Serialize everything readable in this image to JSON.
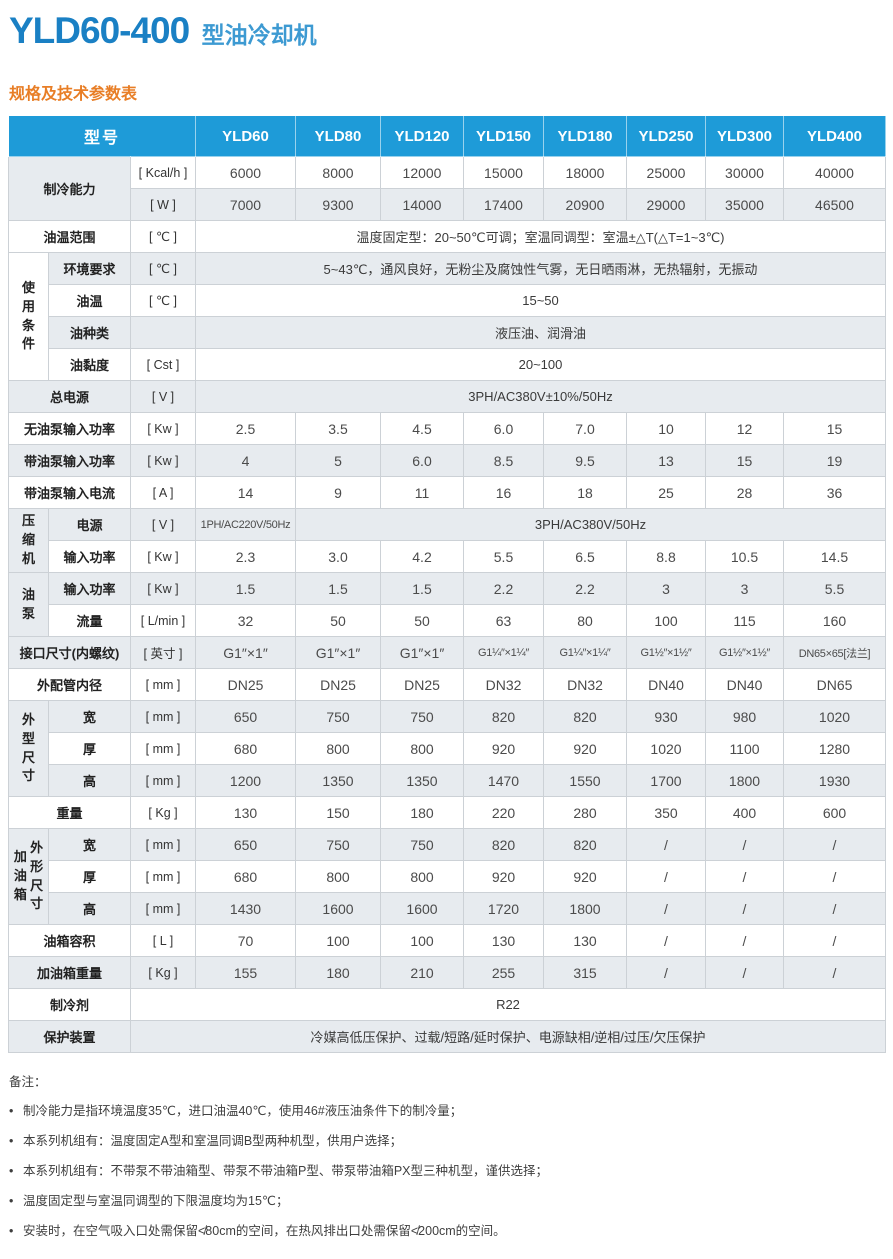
{
  "page": {
    "title_model": "YLD60-400",
    "title_type": "型油冷却机",
    "section_title": "规格及技术参数表"
  },
  "colors": {
    "header_bg": "#1e9bd8",
    "title_blue": "#1a80c4",
    "title_blue_light": "#3d9ad2",
    "accent_orange": "#e87e26",
    "row_shade": "#e7ebef"
  },
  "table": {
    "header": [
      "型号",
      "YLD60",
      "YLD80",
      "YLD120",
      "YLD150",
      "YLD180",
      "YLD250",
      "YLD300",
      "YLD400"
    ],
    "rows": [
      [
        {
          "t": "制冷能力",
          "c": 2,
          "r": 2,
          "k": "l",
          "s": 1
        },
        {
          "t": "[ Kcal/h ]",
          "k": "u"
        },
        "6000",
        "8000",
        "12000",
        "15000",
        "18000",
        "25000",
        "30000",
        "40000"
      ],
      [
        {
          "t": "[ W ]",
          "k": "u"
        },
        "7000",
        "9300",
        "14000",
        "17400",
        "20900",
        "29000",
        "35000",
        "46500"
      ],
      [
        {
          "t": "油温范围",
          "c": 2,
          "k": "l"
        },
        {
          "t": "[ ℃ ]",
          "k": "u"
        },
        {
          "t": "温度固定型：20~50℃可调；室温同调型：室温±△T(△T=1~3℃)",
          "c": 8,
          "k": "v"
        }
      ],
      [
        {
          "t": "使用条件",
          "r": 4,
          "k": "g",
          "s": 0
        },
        {
          "t": "环境要求",
          "k": "s"
        },
        {
          "t": "[ ℃ ]",
          "k": "u"
        },
        {
          "t": "5~43℃，通风良好，无粉尘及腐蚀性气雾，无日晒雨淋，无热辐射，无振动",
          "c": 8,
          "k": "v"
        }
      ],
      [
        {
          "t": "油温",
          "k": "s"
        },
        {
          "t": "[ ℃ ]",
          "k": "u"
        },
        {
          "t": "15~50",
          "c": 8,
          "k": "v"
        }
      ],
      [
        {
          "t": "油种类",
          "k": "s"
        },
        {
          "t": "",
          "k": "u"
        },
        {
          "t": "液压油、润滑油",
          "c": 8,
          "k": "v"
        }
      ],
      [
        {
          "t": "油黏度",
          "k": "s"
        },
        {
          "t": "[ Cst ]",
          "k": "u"
        },
        {
          "t": "20~100",
          "c": 8,
          "k": "v"
        }
      ],
      [
        {
          "t": "总电源",
          "c": 2,
          "k": "l"
        },
        {
          "t": "[ V ]",
          "k": "u"
        },
        {
          "t": "3PH/AC380V±10%/50Hz",
          "c": 8,
          "k": "v"
        }
      ],
      [
        {
          "t": "无油泵输入功率",
          "c": 2,
          "k": "l"
        },
        {
          "t": "[ Kw ]",
          "k": "u"
        },
        "2.5",
        "3.5",
        "4.5",
        "6.0",
        "7.0",
        "10",
        "12",
        "15"
      ],
      [
        {
          "t": "带油泵输入功率",
          "c": 2,
          "k": "l"
        },
        {
          "t": "[ Kw ]",
          "k": "u"
        },
        "4",
        "5",
        "6.0",
        "8.5",
        "9.5",
        "13",
        "15",
        "19"
      ],
      [
        {
          "t": "带油泵输入电流",
          "c": 2,
          "k": "l"
        },
        {
          "t": "[ A ]",
          "k": "u"
        },
        "14",
        "9",
        "11",
        "16",
        "18",
        "25",
        "28",
        "36"
      ],
      [
        {
          "t": "压缩机",
          "r": 2,
          "k": "g",
          "s": 1
        },
        {
          "t": "电源",
          "k": "s"
        },
        {
          "t": "[ V ]",
          "k": "u"
        },
        {
          "t": "1PH/AC220V/50Hz",
          "k": "v"
        },
        {
          "t": "3PH/AC380V/50Hz",
          "c": 7,
          "k": "v"
        }
      ],
      [
        {
          "t": "输入功率",
          "k": "s"
        },
        {
          "t": "[ Kw ]",
          "k": "u"
        },
        "2.3",
        "3.0",
        "4.2",
        "5.5",
        "6.5",
        "8.8",
        "10.5",
        "14.5"
      ],
      [
        {
          "t": "油泵",
          "r": 2,
          "k": "g",
          "s": 1
        },
        {
          "t": "输入功率",
          "k": "s"
        },
        {
          "t": "[ Kw ]",
          "k": "u"
        },
        "1.5",
        "1.5",
        "1.5",
        "2.2",
        "2.2",
        "3",
        "3",
        "5.5"
      ],
      [
        {
          "t": "流量",
          "k": "s"
        },
        {
          "t": "[ L/min ]",
          "k": "u"
        },
        "32",
        "50",
        "50",
        "63",
        "80",
        "100",
        "115",
        "160"
      ],
      [
        {
          "t": "接口尺寸(内螺纹)",
          "c": 2,
          "k": "l"
        },
        {
          "t": "[ 英寸 ]",
          "k": "u"
        },
        "G1″×1″",
        "G1″×1″",
        "G1″×1″",
        "G1¼″×1¼″",
        "G1¼″×1¼″",
        "G1½″×1½″",
        "G1½″×1½″",
        "DN65×65[法兰]"
      ],
      [
        {
          "t": "外配管内径",
          "c": 2,
          "k": "l"
        },
        {
          "t": "[ mm ]",
          "k": "u"
        },
        "DN25",
        "DN25",
        "DN25",
        "DN32",
        "DN32",
        "DN40",
        "DN40",
        "DN65"
      ],
      [
        {
          "t": "外型尺寸",
          "r": 3,
          "k": "g",
          "s": 1
        },
        {
          "t": "宽",
          "k": "s"
        },
        {
          "t": "[ mm ]",
          "k": "u"
        },
        "650",
        "750",
        "750",
        "820",
        "820",
        "930",
        "980",
        "1020"
      ],
      [
        {
          "t": "厚",
          "k": "s"
        },
        {
          "t": "[ mm ]",
          "k": "u"
        },
        "680",
        "800",
        "800",
        "920",
        "920",
        "1020",
        "1100",
        "1280"
      ],
      [
        {
          "t": "高",
          "k": "s"
        },
        {
          "t": "[ mm ]",
          "k": "u"
        },
        "1200",
        "1350",
        "1350",
        "1470",
        "1550",
        "1700",
        "1800",
        "1930"
      ],
      [
        {
          "t": "重量",
          "c": 2,
          "k": "l"
        },
        {
          "t": "[ Kg ]",
          "k": "u"
        },
        "130",
        "150",
        "180",
        "220",
        "280",
        "350",
        "400",
        "600"
      ],
      [
        {
          "t": [
            "加油箱",
            "外形尺寸"
          ],
          "r": 3,
          "k": "g2",
          "s": 1
        },
        {
          "t": "宽",
          "k": "s"
        },
        {
          "t": "[ mm ]",
          "k": "u"
        },
        "650",
        "750",
        "750",
        "820",
        "820",
        "/",
        "/",
        "/"
      ],
      [
        {
          "t": "厚",
          "k": "s"
        },
        {
          "t": "[ mm ]",
          "k": "u"
        },
        "680",
        "800",
        "800",
        "920",
        "920",
        "/",
        "/",
        "/"
      ],
      [
        {
          "t": "高",
          "k": "s"
        },
        {
          "t": "[ mm ]",
          "k": "u"
        },
        "1430",
        "1600",
        "1600",
        "1720",
        "1800",
        "/",
        "/",
        "/"
      ],
      [
        {
          "t": "油箱容积",
          "c": 2,
          "k": "l"
        },
        {
          "t": "[ L ]",
          "k": "u"
        },
        "70",
        "100",
        "100",
        "130",
        "130",
        "/",
        "/",
        "/"
      ],
      [
        {
          "t": "加油箱重量",
          "c": 2,
          "k": "l"
        },
        {
          "t": "[ Kg ]",
          "k": "u"
        },
        "155",
        "180",
        "210",
        "255",
        "315",
        "/",
        "/",
        "/"
      ],
      [
        {
          "t": "制冷剂",
          "c": 2,
          "k": "l"
        },
        {
          "t": "R22",
          "c": 9,
          "k": "v"
        }
      ],
      [
        {
          "t": "保护装置",
          "c": 2,
          "k": "l"
        },
        {
          "t": "冷媒高低压保护、过载/短路/延时保护、电源缺相/逆相/过压/欠压保护",
          "c": 9,
          "k": "v"
        }
      ]
    ]
  },
  "notes": {
    "label": "备注：",
    "bullet": "•",
    "items": [
      "制冷能力是指环境温度35℃，进口油温40℃，使用46#液压油条件下的制冷量；",
      "本系列机组有：温度固定A型和室温同调B型两种机型，供用户选择；",
      "本系列机组有：不带泵不带油箱型、带泵不带油箱P型、带泵带油箱PX型三种机型，谨供选择；",
      "温度固定型与室温同调型的下限温度均为15℃；",
      "安装时，在空气吸入口处需保留≮80cm的空间，在热风排出口处需保留≮200cm的空间。"
    ]
  }
}
